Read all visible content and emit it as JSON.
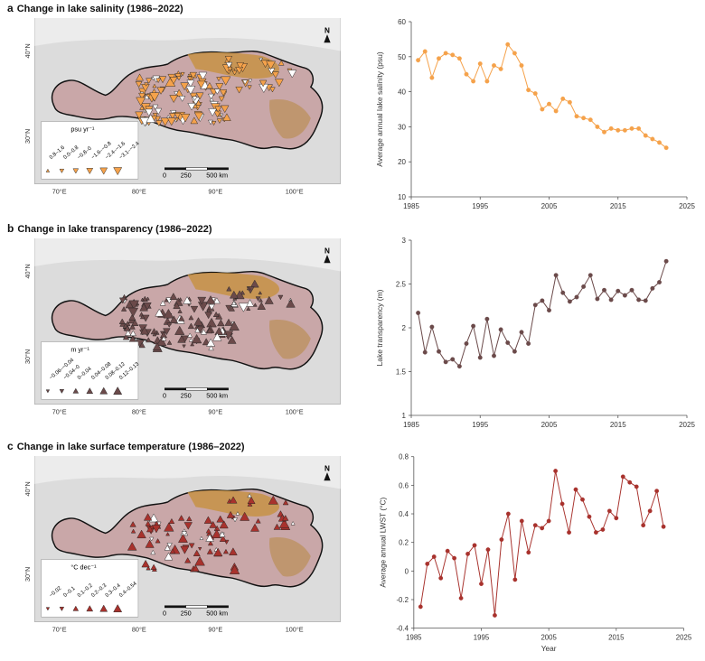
{
  "maps": [
    {
      "letter": "a",
      "title": "Change in lake salinity (1986–2022)",
      "legend_unit": "psu yr⁻¹",
      "legend_items": [
        "0.8–1.6",
        "0.0–0.8",
        "−0.8–0",
        "−1.6–−0.8",
        "−2.4–−1.6",
        "−3.1–−2.4"
      ],
      "north": "N",
      "scale_labels": [
        "0",
        "250",
        "500 km"
      ],
      "lat_labels": [
        "40°N",
        "30°N"
      ],
      "lon_labels": [
        "70°E",
        "80°E",
        "90°E",
        "100°E"
      ],
      "marker_color": "#f5a24b"
    },
    {
      "letter": "b",
      "title": "Change in lake transparency (1986–2022)",
      "legend_unit": "m yr⁻¹",
      "legend_items": [
        "−0.06–−0.04",
        "−0.04–0",
        "0–0.04",
        "0.04–0.08",
        "0.08–0.12",
        "0.12–0.13"
      ],
      "north": "N",
      "scale_labels": [
        "0",
        "250",
        "500 km"
      ],
      "lat_labels": [
        "40°N",
        "30°N"
      ],
      "lon_labels": [
        "70°E",
        "80°E",
        "90°E",
        "100°E"
      ],
      "marker_color": "#6b4a4a"
    },
    {
      "letter": "c",
      "title": "Change in lake surface temperature (1986–2022)",
      "legend_unit": "°C dec⁻¹",
      "legend_items": [
        "−0.02",
        "0–0.1",
        "0.1–0.2",
        "0.2–0.3",
        "0.3–0.4",
        "0.4–0.54"
      ],
      "north": "N",
      "scale_labels": [
        "0",
        "250",
        "500 km"
      ],
      "lat_labels": [
        "40°N",
        "30°N"
      ],
      "lon_labels": [
        "70°E",
        "80°E",
        "90°E",
        "100°E"
      ],
      "marker_color": "#a8322d"
    }
  ],
  "chart_data": [
    {
      "type": "line",
      "title": "",
      "xlabel": "",
      "ylabel": "Average annual lake salinity (psu)",
      "xlim": [
        1985,
        2025
      ],
      "ylim": [
        10,
        60
      ],
      "xticks": [
        1985,
        1995,
        2005,
        2015,
        2025
      ],
      "yticks": [
        10,
        20,
        30,
        40,
        50,
        60
      ],
      "color": "#f5a24b",
      "series": [
        {
          "name": "salinity",
          "x": [
            1986,
            1987,
            1988,
            1989,
            1990,
            1991,
            1992,
            1993,
            1994,
            1995,
            1996,
            1997,
            1998,
            1999,
            2000,
            2001,
            2002,
            2003,
            2004,
            2005,
            2006,
            2007,
            2008,
            2009,
            2010,
            2011,
            2012,
            2013,
            2014,
            2015,
            2016,
            2017,
            2018,
            2019,
            2020,
            2021,
            2022
          ],
          "values": [
            49,
            51.5,
            44,
            49.5,
            51,
            50.5,
            49.5,
            45,
            43,
            48,
            43,
            47.5,
            46.5,
            53.5,
            51,
            47.5,
            40.5,
            39.5,
            35,
            36.5,
            34.5,
            38,
            37,
            33,
            32.5,
            32,
            30,
            28.5,
            29.5,
            29,
            29,
            29.5,
            29.5,
            27.5,
            26.5,
            25.5,
            24
          ]
        }
      ]
    },
    {
      "type": "line",
      "title": "",
      "xlabel": "",
      "ylabel": "Lake transparency (m)",
      "xlim": [
        1985,
        2025
      ],
      "ylim": [
        1,
        3
      ],
      "xticks": [
        1985,
        1995,
        2005,
        2015,
        2025
      ],
      "yticks": [
        1,
        1.5,
        2,
        2.5,
        3
      ],
      "color": "#6b4a4a",
      "series": [
        {
          "name": "transparency",
          "x": [
            1986,
            1987,
            1988,
            1989,
            1990,
            1991,
            1992,
            1993,
            1994,
            1995,
            1996,
            1997,
            1998,
            1999,
            2000,
            2001,
            2002,
            2003,
            2004,
            2005,
            2006,
            2007,
            2008,
            2009,
            2010,
            2011,
            2012,
            2013,
            2014,
            2015,
            2016,
            2017,
            2018,
            2019,
            2020,
            2021,
            2022
          ],
          "values": [
            2.17,
            1.72,
            2.01,
            1.73,
            1.61,
            1.64,
            1.56,
            1.82,
            2.02,
            1.66,
            2.1,
            1.68,
            1.98,
            1.83,
            1.73,
            1.95,
            1.82,
            2.26,
            2.31,
            2.2,
            2.6,
            2.4,
            2.3,
            2.35,
            2.47,
            2.6,
            2.33,
            2.43,
            2.32,
            2.42,
            2.37,
            2.43,
            2.32,
            2.31,
            2.45,
            2.52,
            2.76
          ]
        }
      ]
    },
    {
      "type": "line",
      "title": "",
      "xlabel": "Year",
      "ylabel": "Average annual LWST (°C)",
      "xlim": [
        1985,
        2025
      ],
      "ylim": [
        -0.4,
        0.8
      ],
      "xticks": [
        1985,
        1995,
        2005,
        2015,
        2025
      ],
      "yticks": [
        -0.4,
        -0.2,
        0,
        0.2,
        0.4,
        0.6,
        0.8
      ],
      "color": "#a8322d",
      "series": [
        {
          "name": "LWST",
          "x": [
            1986,
            1987,
            1988,
            1989,
            1990,
            1991,
            1992,
            1993,
            1994,
            1995,
            1996,
            1997,
            1998,
            1999,
            2000,
            2001,
            2002,
            2003,
            2004,
            2005,
            2006,
            2007,
            2008,
            2009,
            2010,
            2011,
            2012,
            2013,
            2014,
            2015,
            2016,
            2017,
            2018,
            2019,
            2020,
            2021,
            2022
          ],
          "values": [
            -0.25,
            0.05,
            0.1,
            -0.05,
            0.14,
            0.09,
            -0.19,
            0.12,
            0.18,
            -0.09,
            0.15,
            -0.31,
            0.22,
            0.4,
            -0.06,
            0.35,
            0.13,
            0.32,
            0.3,
            0.35,
            0.7,
            0.47,
            0.27,
            0.57,
            0.5,
            0.38,
            0.27,
            0.29,
            0.42,
            0.37,
            0.66,
            0.62,
            0.59,
            0.32,
            0.42,
            0.56,
            0.31
          ]
        }
      ]
    }
  ]
}
